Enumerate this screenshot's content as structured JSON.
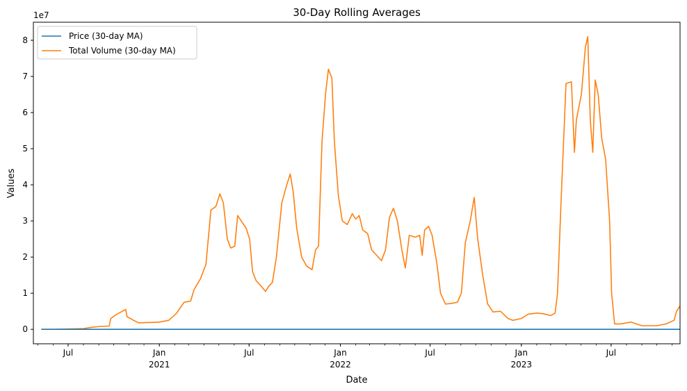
{
  "chart_data": {
    "type": "line",
    "title": "30-Day Rolling Averages",
    "xlabel": "Date",
    "ylabel": "Values",
    "y_offset_label": "1e7",
    "ylim": [
      -4000000,
      85000000
    ],
    "xlim": [
      "2020-04-22",
      "2023-11-17"
    ],
    "y_ticks": [
      {
        "value": 0,
        "label": "0"
      },
      {
        "value": 10000000,
        "label": "1"
      },
      {
        "value": 20000000,
        "label": "2"
      },
      {
        "value": 30000000,
        "label": "3"
      },
      {
        "value": 40000000,
        "label": "4"
      },
      {
        "value": 50000000,
        "label": "5"
      },
      {
        "value": 60000000,
        "label": "6"
      },
      {
        "value": 70000000,
        "label": "7"
      },
      {
        "value": 80000000,
        "label": "8"
      }
    ],
    "x_ticks": [
      {
        "date": "2020-07-01",
        "label": "Jul",
        "sub": ""
      },
      {
        "date": "2021-01-01",
        "label": "Jan",
        "sub": "2021"
      },
      {
        "date": "2021-07-01",
        "label": "Jul",
        "sub": ""
      },
      {
        "date": "2022-01-01",
        "label": "Jan",
        "sub": "2022"
      },
      {
        "date": "2022-07-01",
        "label": "Jul",
        "sub": ""
      },
      {
        "date": "2023-01-01",
        "label": "Jan",
        "sub": "2023"
      },
      {
        "date": "2023-07-01",
        "label": "Jul",
        "sub": ""
      }
    ],
    "legend": {
      "placement": "upper-left"
    },
    "grid": false,
    "series": [
      {
        "name": "Price (30-day MA)",
        "color": "#1f77b4",
        "points": [
          [
            "2020-05-08",
            0
          ],
          [
            "2023-11-17",
            0
          ]
        ]
      },
      {
        "name": "Total Volume (30-day MA)",
        "color": "#ff7f0e",
        "points": [
          [
            "2020-05-08",
            0
          ],
          [
            "2020-06-01",
            0
          ],
          [
            "2020-07-01",
            100000
          ],
          [
            "2020-08-01",
            200000
          ],
          [
            "2020-08-20",
            600000
          ],
          [
            "2020-09-05",
            800000
          ],
          [
            "2020-09-22",
            900000
          ],
          [
            "2020-09-25",
            3000000
          ],
          [
            "2020-10-05",
            4000000
          ],
          [
            "2020-10-25",
            5500000
          ],
          [
            "2020-10-28",
            3500000
          ],
          [
            "2020-11-10",
            2500000
          ],
          [
            "2020-11-20",
            1800000
          ],
          [
            "2020-12-15",
            1900000
          ],
          [
            "2021-01-01",
            2000000
          ],
          [
            "2021-01-20",
            2500000
          ],
          [
            "2021-02-05",
            4500000
          ],
          [
            "2021-02-20",
            7500000
          ],
          [
            "2021-03-05",
            7800000
          ],
          [
            "2021-03-12",
            11000000
          ],
          [
            "2021-03-25",
            14000000
          ],
          [
            "2021-04-05",
            18000000
          ],
          [
            "2021-04-15",
            33000000
          ],
          [
            "2021-04-25",
            34000000
          ],
          [
            "2021-05-03",
            37500000
          ],
          [
            "2021-05-10",
            35000000
          ],
          [
            "2021-05-18",
            25000000
          ],
          [
            "2021-05-25",
            22500000
          ],
          [
            "2021-06-02",
            23000000
          ],
          [
            "2021-06-08",
            31500000
          ],
          [
            "2021-06-15",
            30000000
          ],
          [
            "2021-06-25",
            28000000
          ],
          [
            "2021-07-02",
            25000000
          ],
          [
            "2021-07-08",
            16000000
          ],
          [
            "2021-07-15",
            13500000
          ],
          [
            "2021-07-25",
            12000000
          ],
          [
            "2021-08-03",
            10500000
          ],
          [
            "2021-08-10",
            12000000
          ],
          [
            "2021-08-17",
            13000000
          ],
          [
            "2021-08-25",
            20000000
          ],
          [
            "2021-09-05",
            35000000
          ],
          [
            "2021-09-15",
            40000000
          ],
          [
            "2021-09-22",
            43000000
          ],
          [
            "2021-09-28",
            38000000
          ],
          [
            "2021-10-05",
            28000000
          ],
          [
            "2021-10-15",
            20000000
          ],
          [
            "2021-10-25",
            17500000
          ],
          [
            "2021-11-05",
            16500000
          ],
          [
            "2021-11-12",
            22000000
          ],
          [
            "2021-11-18",
            23000000
          ],
          [
            "2021-11-25",
            52000000
          ],
          [
            "2021-12-02",
            65000000
          ],
          [
            "2021-12-08",
            72000000
          ],
          [
            "2021-12-15",
            69500000
          ],
          [
            "2021-12-20",
            52000000
          ],
          [
            "2021-12-28",
            37000000
          ],
          [
            "2022-01-05",
            30000000
          ],
          [
            "2022-01-15",
            29000000
          ],
          [
            "2022-01-25",
            32000000
          ],
          [
            "2022-02-01",
            30500000
          ],
          [
            "2022-02-08",
            31500000
          ],
          [
            "2022-02-15",
            27500000
          ],
          [
            "2022-02-25",
            26500000
          ],
          [
            "2022-03-05",
            22000000
          ],
          [
            "2022-03-15",
            20500000
          ],
          [
            "2022-03-25",
            19000000
          ],
          [
            "2022-04-02",
            22000000
          ],
          [
            "2022-04-10",
            31000000
          ],
          [
            "2022-04-18",
            33500000
          ],
          [
            "2022-04-26",
            30000000
          ],
          [
            "2022-05-05",
            22000000
          ],
          [
            "2022-05-12",
            17000000
          ],
          [
            "2022-05-20",
            26000000
          ],
          [
            "2022-06-01",
            25500000
          ],
          [
            "2022-06-10",
            26000000
          ],
          [
            "2022-06-15",
            20500000
          ],
          [
            "2022-06-20",
            27500000
          ],
          [
            "2022-06-28",
            28500000
          ],
          [
            "2022-07-05",
            26000000
          ],
          [
            "2022-07-15",
            18000000
          ],
          [
            "2022-07-22",
            10000000
          ],
          [
            "2022-08-01",
            7000000
          ],
          [
            "2022-08-15",
            7200000
          ],
          [
            "2022-08-25",
            7500000
          ],
          [
            "2022-09-02",
            10000000
          ],
          [
            "2022-09-10",
            24000000
          ],
          [
            "2022-09-20",
            30000000
          ],
          [
            "2022-09-28",
            36500000
          ],
          [
            "2022-10-05",
            25000000
          ],
          [
            "2022-10-15",
            15000000
          ],
          [
            "2022-10-25",
            7000000
          ],
          [
            "2022-11-05",
            4800000
          ],
          [
            "2022-11-20",
            5000000
          ],
          [
            "2022-12-05",
            3000000
          ],
          [
            "2022-12-15",
            2500000
          ],
          [
            "2023-01-01",
            3000000
          ],
          [
            "2023-01-15",
            4200000
          ],
          [
            "2023-02-01",
            4500000
          ],
          [
            "2023-02-15",
            4300000
          ],
          [
            "2023-03-01",
            3800000
          ],
          [
            "2023-03-10",
            4500000
          ],
          [
            "2023-03-15",
            10000000
          ],
          [
            "2023-03-22",
            35000000
          ],
          [
            "2023-04-01",
            68000000
          ],
          [
            "2023-04-12",
            68500000
          ],
          [
            "2023-04-18",
            49000000
          ],
          [
            "2023-04-22",
            58000000
          ],
          [
            "2023-05-02",
            65000000
          ],
          [
            "2023-05-10",
            78000000
          ],
          [
            "2023-05-15",
            81000000
          ],
          [
            "2023-05-20",
            58000000
          ],
          [
            "2023-05-25",
            49000000
          ],
          [
            "2023-05-30",
            69000000
          ],
          [
            "2023-06-05",
            65000000
          ],
          [
            "2023-06-12",
            53000000
          ],
          [
            "2023-06-20",
            47000000
          ],
          [
            "2023-06-28",
            30000000
          ],
          [
            "2023-07-02",
            10000000
          ],
          [
            "2023-07-08",
            1500000
          ],
          [
            "2023-07-20",
            1500000
          ],
          [
            "2023-08-10",
            2000000
          ],
          [
            "2023-09-01",
            1000000
          ],
          [
            "2023-10-01",
            1000000
          ],
          [
            "2023-10-20",
            1500000
          ],
          [
            "2023-11-05",
            2500000
          ],
          [
            "2023-11-10",
            5000000
          ],
          [
            "2023-11-17",
            6500000
          ]
        ]
      }
    ]
  }
}
